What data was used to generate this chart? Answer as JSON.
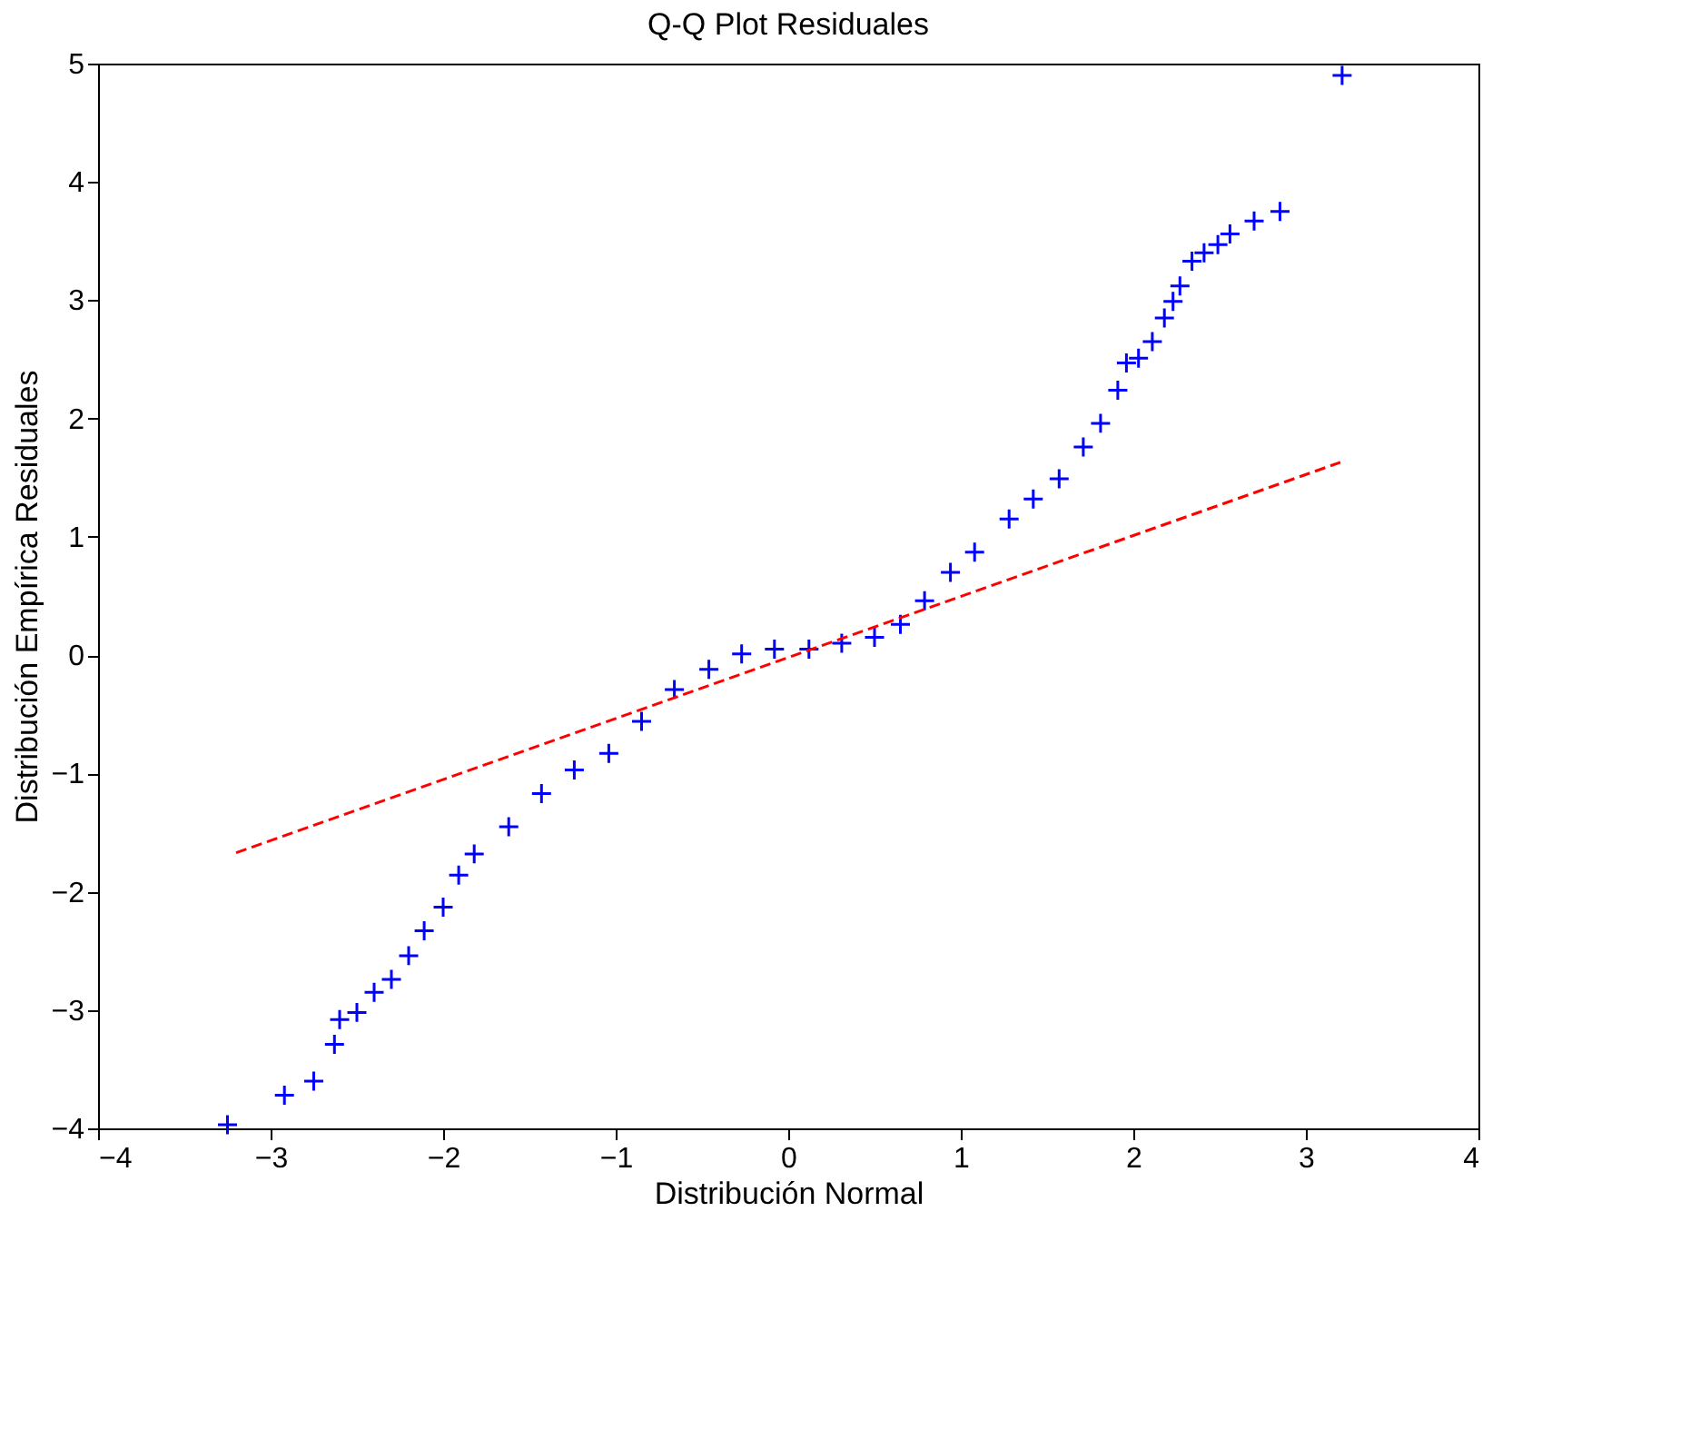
{
  "chart_data": {
    "type": "scatter",
    "title": "Q-Q Plot Residuales",
    "xlabel": "Distribución Normal",
    "ylabel": "Distribución Empírica Residuales",
    "xlim": [
      -4,
      4
    ],
    "ylim": [
      -4,
      5
    ],
    "xticks": [
      -4,
      -3,
      -2,
      -1,
      0,
      1,
      2,
      3,
      4
    ],
    "yticks": [
      -4,
      -3,
      -2,
      -1,
      0,
      1,
      2,
      3,
      4,
      5
    ],
    "grid": false,
    "series": [
      {
        "color": "#0000ff",
        "marker": "cross",
        "x": [
          -3.25,
          -2.92,
          -2.75,
          -2.63,
          -2.6,
          -2.5,
          -2.4,
          -2.3,
          -2.2,
          -2.11,
          -2.0,
          -1.91,
          -1.82,
          -1.62,
          -1.43,
          -1.24,
          -1.04,
          -0.85,
          -0.66,
          -0.46,
          -0.27,
          -0.08,
          0.12,
          0.31,
          0.5,
          0.65,
          0.79,
          0.94,
          1.08,
          1.28,
          1.42,
          1.57,
          1.71,
          1.81,
          1.91,
          1.96,
          2.03,
          2.11,
          2.18,
          2.23,
          2.27,
          2.34,
          2.41,
          2.49,
          2.56,
          2.7,
          2.85,
          3.21
        ],
        "values": [
          -3.97,
          -3.72,
          -3.6,
          -3.29,
          -3.08,
          -3.02,
          -2.85,
          -2.74,
          -2.54,
          -2.33,
          -2.13,
          -1.86,
          -1.68,
          -1.45,
          -1.17,
          -0.97,
          -0.83,
          -0.56,
          -0.29,
          -0.12,
          0.01,
          0.05,
          0.05,
          0.1,
          0.15,
          0.26,
          0.46,
          0.7,
          0.87,
          1.15,
          1.32,
          1.49,
          1.76,
          1.96,
          2.24,
          2.47,
          2.51,
          2.65,
          2.85,
          2.99,
          3.12,
          3.33,
          3.4,
          3.47,
          3.56,
          3.67,
          3.75,
          4.9
        ]
      },
      {
        "type": "line",
        "color": "#ff0000",
        "marker": "none",
        "line_style": "dashed",
        "x": [
          -3.2,
          3.2
        ],
        "values": [
          -1.67,
          1.63
        ]
      }
    ]
  }
}
